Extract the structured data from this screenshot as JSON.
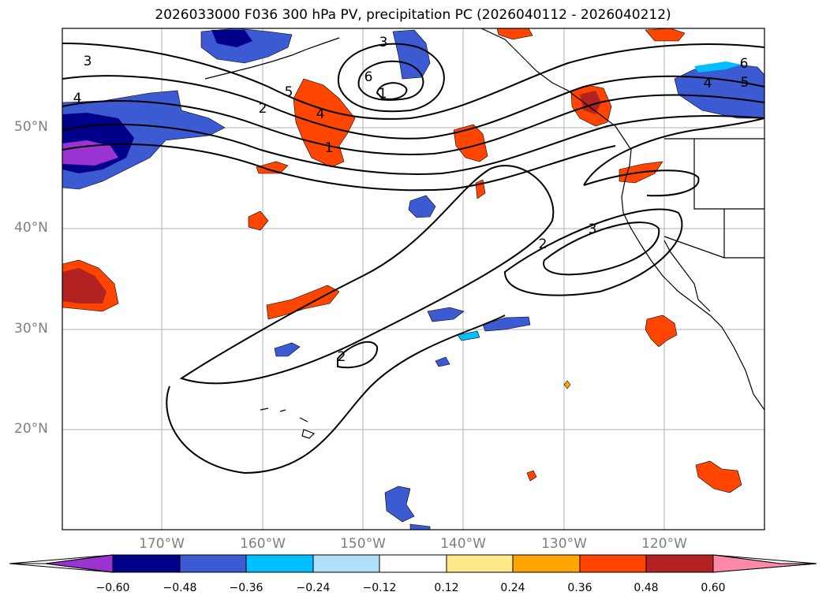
{
  "title": "2026033000 F036 300 hPa PV, precipitation PC (2026040112 - 2026040212)",
  "map": {
    "lat_labels": [
      "50°N",
      "40°N",
      "30°N",
      "20°N"
    ],
    "lon_labels": [
      "170°W",
      "160°W",
      "150°W",
      "140°W",
      "130°W",
      "120°W"
    ],
    "contour_labels": [
      "3",
      "4",
      "3",
      "6",
      "1",
      "5",
      "2",
      "4",
      "1",
      "6",
      "4",
      "5",
      "2",
      "3",
      "2"
    ]
  },
  "colorbar": {
    "levels": [
      "−0.60",
      "−0.48",
      "−0.36",
      "−0.24",
      "−0.12",
      "0.12",
      "0.24",
      "0.36",
      "0.48",
      "0.60"
    ],
    "colors": {
      "under": "#9b32d2",
      "neg_060": "#00008b",
      "neg_048": "#3c5ad2",
      "neg_036": "#00bfff",
      "neg_024": "#aee0fa",
      "neutral": "#ffffff",
      "pos_012": "#ffe98a",
      "pos_024": "#ffa500",
      "pos_036": "#ff4500",
      "pos_048": "#b22222",
      "over": "#ff89a8"
    }
  }
}
